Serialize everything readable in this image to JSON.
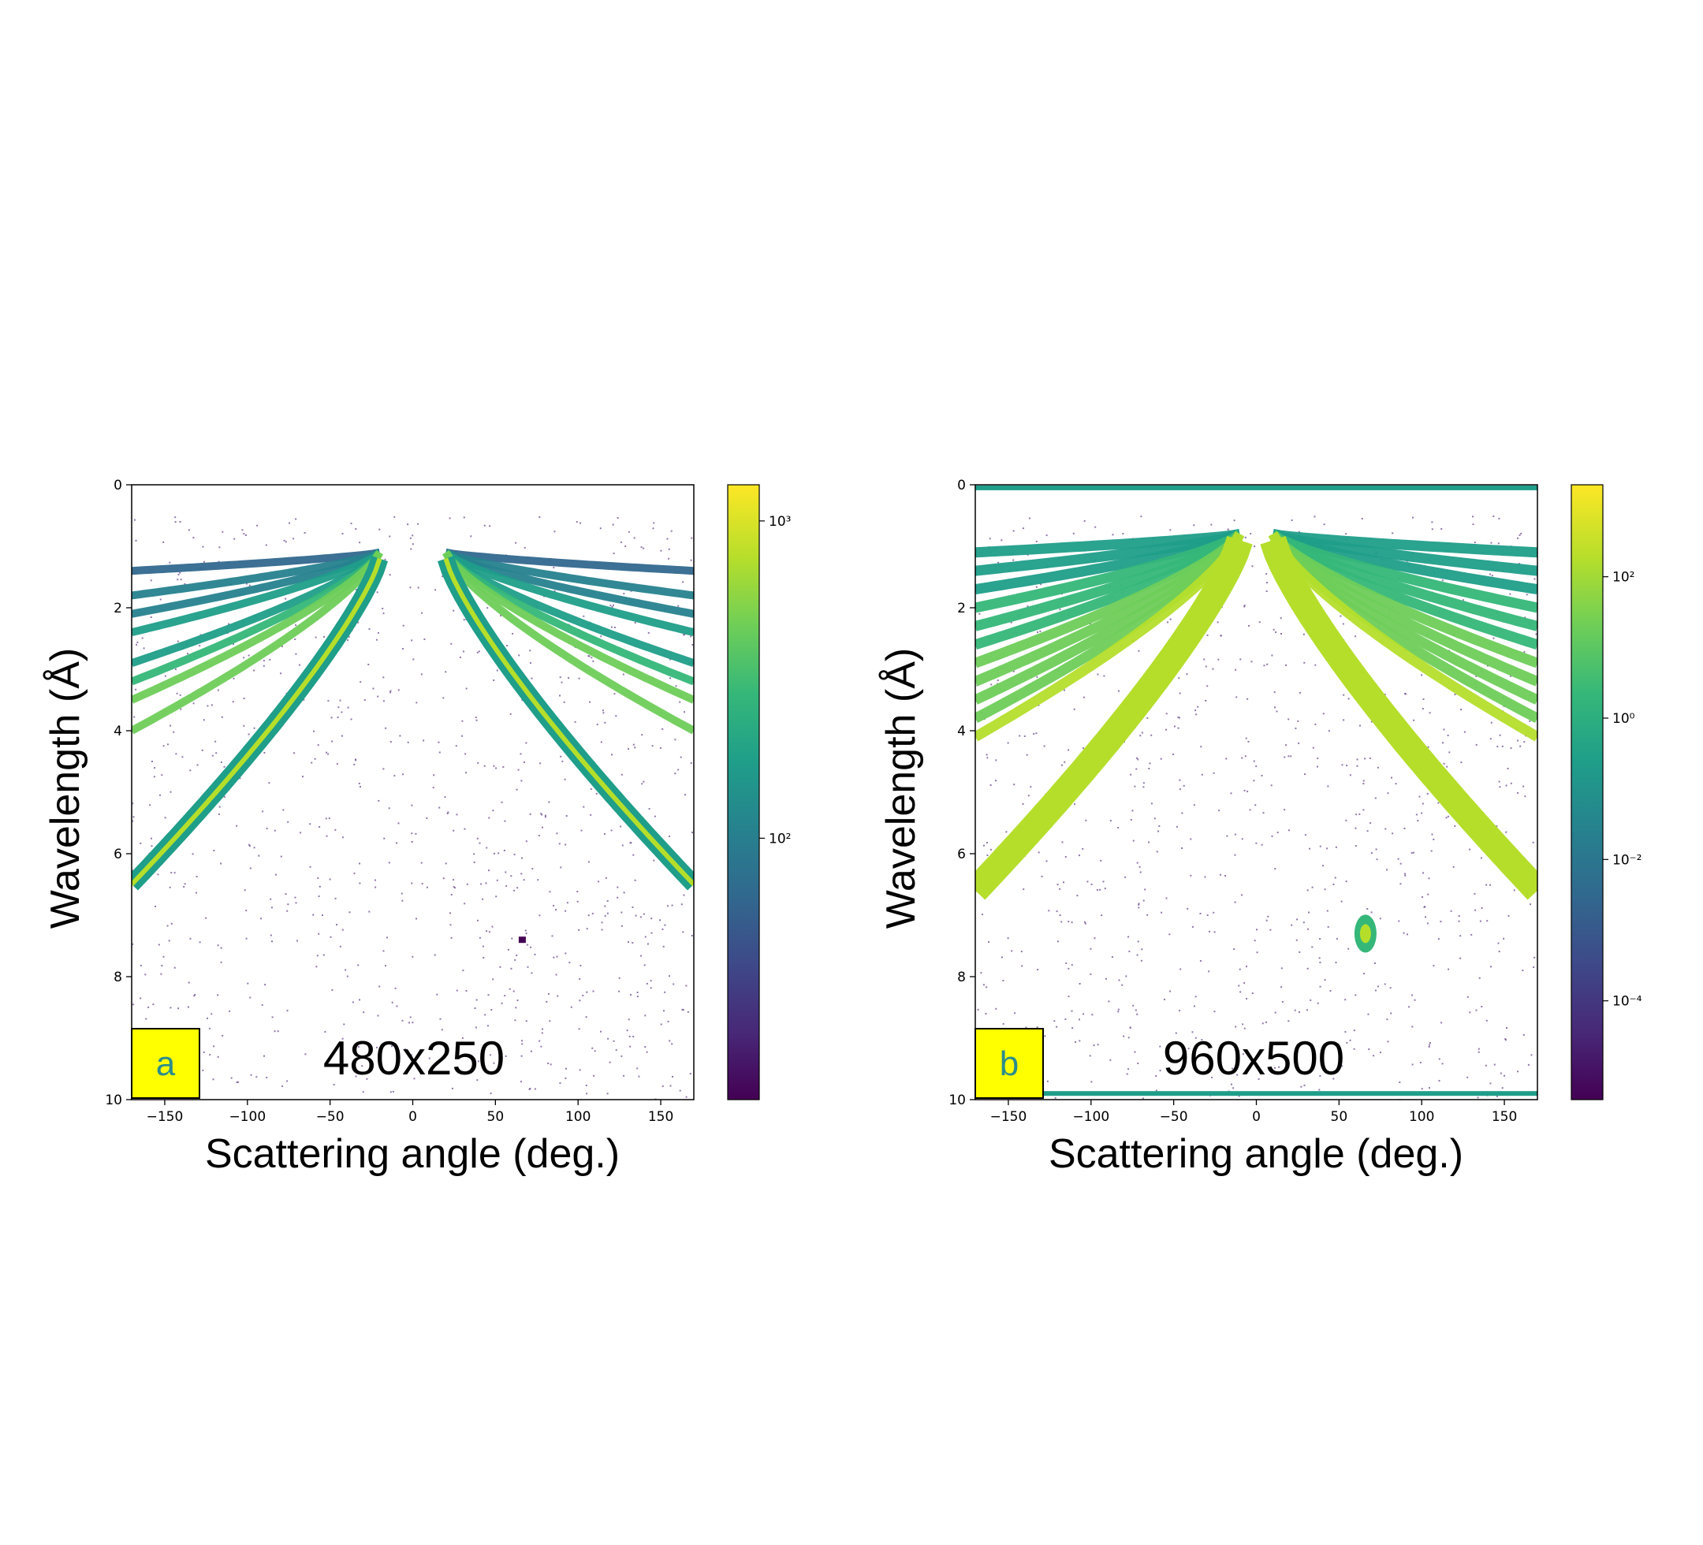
{
  "colormap": [
    "#440154",
    "#482878",
    "#3e4989",
    "#31688e",
    "#26828e",
    "#1f9e89",
    "#35b779",
    "#6ece58",
    "#b5de2b",
    "#fde725"
  ],
  "tag_background": "#ffff00",
  "tag_text_color": "#2a8c8c",
  "chart_data": [
    {
      "type": "heatmap",
      "panel_tag": "a",
      "resolution_label": "480x250",
      "xlabel": "Scattering angle (deg.)",
      "ylabel": "Wavelength (Å)",
      "xlim": [
        -170,
        170
      ],
      "ylim": [
        0,
        10
      ],
      "y_inverted": true,
      "x_ticks": [
        "−150",
        "−100",
        "−50",
        "0",
        "50",
        "100",
        "150"
      ],
      "x_tick_values": [
        -150,
        -100,
        -50,
        0,
        50,
        100,
        150
      ],
      "y_ticks": [
        "0",
        "2",
        "4",
        "6",
        "8",
        "10"
      ],
      "y_tick_values": [
        0,
        2,
        4,
        6,
        8,
        10
      ],
      "colorbar": {
        "scale": "log",
        "range": [
          15,
          1300
        ],
        "tick_values": [
          100,
          1000
        ],
        "ticks": [
          "10²",
          "10³"
        ]
      },
      "features": {
        "upper_bands": {
          "theta_range": [
            20,
            170
          ],
          "wavelength_start": 1.1,
          "wavelength_end": [
            1.4,
            1.8,
            2.1,
            2.4,
            2.9,
            3.2,
            3.5,
            4.0
          ]
        },
        "strong_curve": {
          "peak_wavelength": 1.2,
          "end_wavelength": 6.5,
          "theta_range": [
            20,
            170
          ]
        },
        "isolated_spot": {
          "theta": 66,
          "wavelength": 7.4
        }
      }
    },
    {
      "type": "heatmap",
      "panel_tag": "b",
      "resolution_label": "960x500",
      "xlabel": "Scattering angle (deg.)",
      "ylabel": "Wavelength (Å)",
      "xlim": [
        -170,
        170
      ],
      "ylim": [
        0,
        10
      ],
      "y_inverted": true,
      "x_ticks": [
        "−150",
        "−100",
        "−50",
        "0",
        "50",
        "100",
        "150"
      ],
      "x_tick_values": [
        -150,
        -100,
        -50,
        0,
        50,
        100,
        150
      ],
      "y_ticks": [
        "0",
        "2",
        "4",
        "6",
        "8",
        "10"
      ],
      "y_tick_values": [
        0,
        2,
        4,
        6,
        8,
        10
      ],
      "colorbar": {
        "scale": "log",
        "range": [
          4e-06,
          2000
        ],
        "tick_values": [
          0.0001,
          0.01,
          1,
          100
        ],
        "ticks": [
          "10⁻⁴",
          "10⁻²",
          "10⁰",
          "10²"
        ]
      },
      "features": {
        "edge_rows": [
          0.05,
          9.9
        ],
        "upper_bands": {
          "theta_range": [
            10,
            170
          ],
          "wavelength_start": 0.8,
          "wavelength_end": [
            1.1,
            1.4,
            1.7,
            2.0,
            2.3,
            2.6,
            2.9,
            3.2,
            3.5,
            3.8,
            4.1
          ]
        },
        "strong_curve": {
          "peak_wavelength": 0.9,
          "end_wavelength": 6.6,
          "theta_range": [
            10,
            170
          ]
        },
        "isolated_spot": {
          "theta": 66,
          "wavelength": 7.3
        }
      }
    }
  ]
}
